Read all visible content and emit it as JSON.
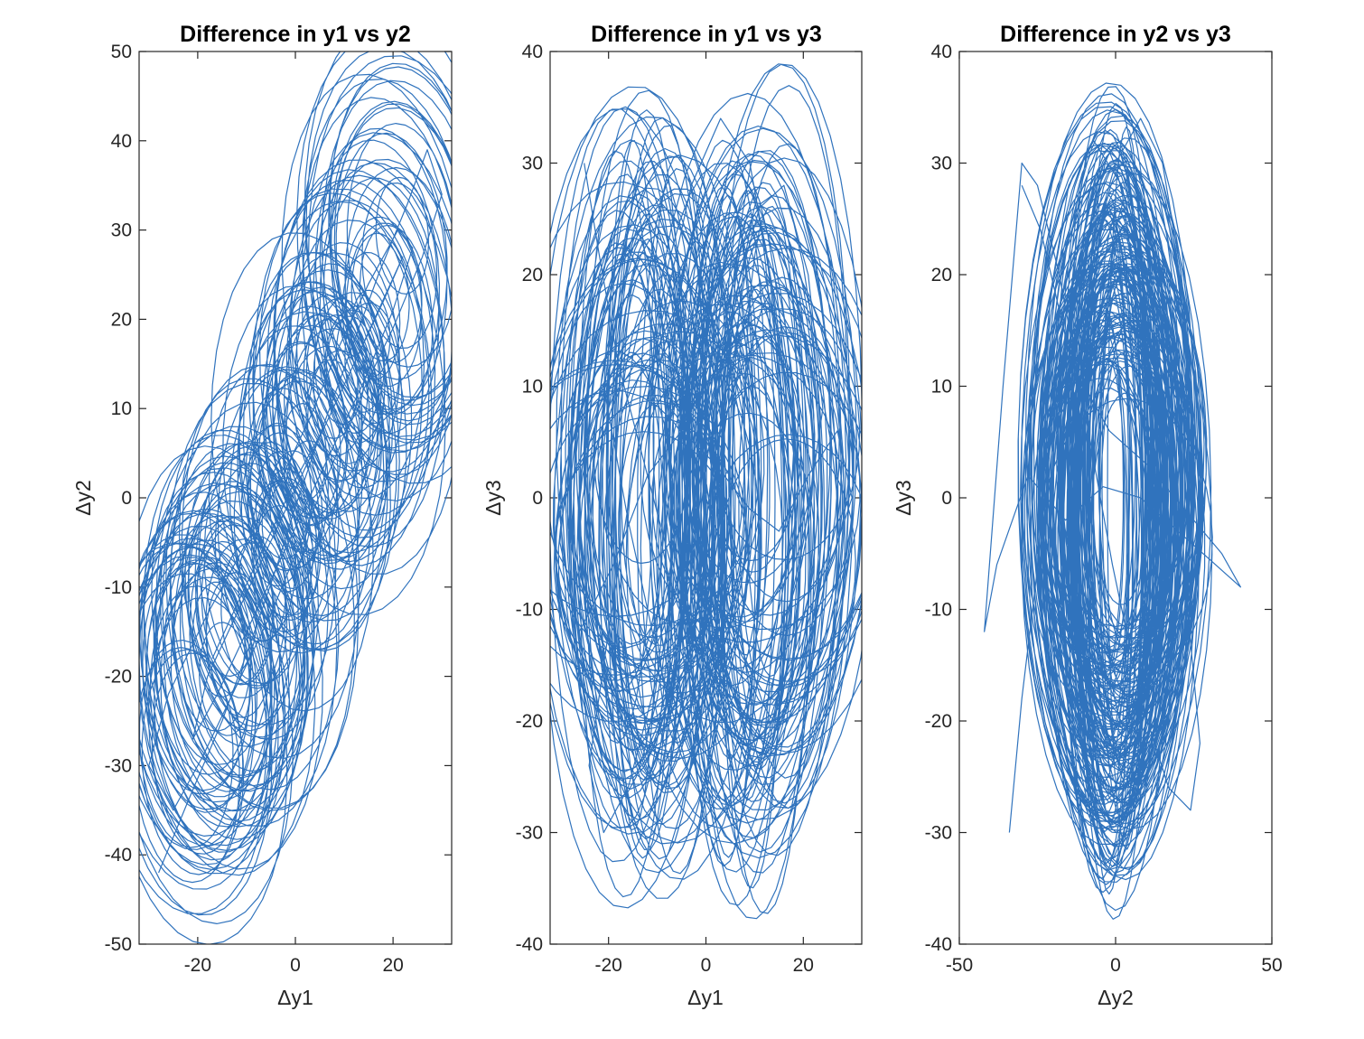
{
  "chart_data": [
    {
      "type": "line",
      "title": "Difference in y1 vs y2",
      "xlabel": "Δy1",
      "ylabel": "Δy2",
      "xlim": [
        -32,
        32
      ],
      "ylim": [
        -50,
        50
      ],
      "xticks": [
        -20,
        0,
        20
      ],
      "yticks": [
        -50,
        -40,
        -30,
        -20,
        -10,
        0,
        10,
        20,
        30,
        40,
        50
      ],
      "grid": false,
      "series": [
        {
          "color": "#3073BD",
          "description_sample": true,
          "x": [
            -28,
            -22,
            -15,
            -9,
            -4,
            0,
            5,
            11,
            17,
            23,
            27,
            30,
            26,
            20,
            13,
            7,
            1,
            -5,
            -12,
            -19,
            -25,
            -30,
            -26,
            -18,
            -10,
            -3,
            3,
            9,
            15,
            21,
            24,
            20,
            14,
            8,
            2,
            -4,
            -10,
            -16,
            -21,
            -18,
            -12,
            -6,
            0,
            6,
            12,
            17,
            22,
            18,
            12,
            6,
            0,
            -6,
            -12,
            -17
          ],
          "y": [
            -42,
            -34,
            -25,
            -16,
            -8,
            -1,
            7,
            16,
            25,
            33,
            39,
            34,
            27,
            19,
            11,
            3,
            -5,
            -13,
            -21,
            -29,
            -35,
            -30,
            -22,
            -13,
            -5,
            2,
            9,
            17,
            24,
            30,
            28,
            21,
            13,
            6,
            -1,
            -8,
            -15,
            -22,
            -27,
            -20,
            -13,
            -6,
            1,
            8,
            15,
            21,
            27,
            22,
            15,
            8,
            2,
            -5,
            -12,
            -18
          ]
        }
      ]
    },
    {
      "type": "line",
      "title": "Difference in y1 vs y3",
      "xlabel": "Δy1",
      "ylabel": "Δy3",
      "xlim": [
        -32,
        32
      ],
      "ylim": [
        -40,
        40
      ],
      "xticks": [
        -20,
        0,
        20
      ],
      "yticks": [
        -40,
        -30,
        -20,
        -10,
        0,
        10,
        20,
        30,
        40
      ],
      "grid": false,
      "series": [
        {
          "color": "#3073BD",
          "x": [
            -25,
            -22,
            -18,
            -12,
            -6,
            -2,
            2,
            7,
            12,
            16,
            18,
            14,
            9,
            3,
            -3,
            -9,
            -15,
            -20,
            -24,
            -21,
            -16,
            -10,
            -4,
            1,
            6,
            11,
            16,
            21,
            24,
            20,
            14,
            8,
            2,
            -4,
            -10,
            -16,
            -21,
            -27,
            -30,
            -26,
            -19,
            -12,
            -5,
            2,
            9,
            15,
            21,
            27,
            30,
            24
          ],
          "y": [
            30,
            22,
            12,
            2,
            -8,
            -18,
            -25,
            -29,
            -22,
            -10,
            4,
            18,
            30,
            34,
            28,
            16,
            2,
            -12,
            -24,
            -30,
            -26,
            -16,
            -4,
            8,
            18,
            26,
            28,
            20,
            8,
            -4,
            -16,
            -26,
            -29,
            -24,
            -14,
            -2,
            10,
            8,
            -4,
            -12,
            -6,
            2,
            6,
            3,
            -1,
            -3,
            2,
            6,
            0,
            -8
          ]
        }
      ]
    },
    {
      "type": "line",
      "title": "Difference in y2 vs y3",
      "xlabel": "Δy2",
      "ylabel": "Δy3",
      "xlim": [
        -50,
        50
      ],
      "ylim": [
        -40,
        40
      ],
      "xticks": [
        -50,
        0,
        50
      ],
      "yticks": [
        -40,
        -30,
        -20,
        -10,
        0,
        10,
        20,
        30,
        40
      ],
      "grid": false,
      "series": [
        {
          "color": "#3073BD",
          "x": [
            -34,
            -30,
            -24,
            -16,
            -8,
            0,
            8,
            15,
            21,
            25,
            22,
            15,
            6,
            -3,
            -11,
            -18,
            -23,
            -21,
            -15,
            -7,
            2,
            10,
            17,
            23,
            27,
            24,
            17,
            8,
            -1,
            -10,
            -18,
            -25,
            -30,
            -36,
            -42,
            -38,
            -28,
            -16,
            -4,
            8,
            20,
            32,
            40,
            34,
            22,
            10,
            -2,
            -14,
            -24,
            -30
          ],
          "y": [
            -30,
            -18,
            -4,
            10,
            22,
            30,
            34,
            30,
            20,
            6,
            -8,
            -20,
            -28,
            -29,
            -22,
            -10,
            4,
            18,
            28,
            32,
            28,
            18,
            4,
            -10,
            -22,
            -28,
            -26,
            -18,
            -6,
            8,
            20,
            28,
            30,
            10,
            -12,
            -6,
            2,
            -2,
            1,
            0,
            -3,
            -6,
            -8,
            -5,
            -1,
            3,
            6,
            12,
            24,
            28
          ]
        }
      ]
    }
  ]
}
